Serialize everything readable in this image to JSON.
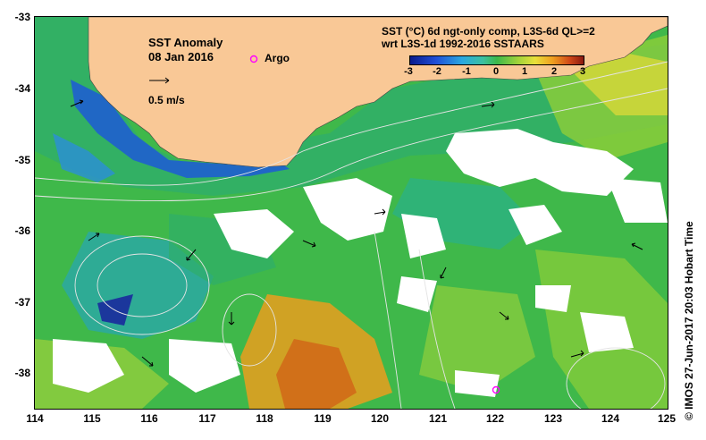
{
  "map": {
    "title": "SST Anomaly",
    "date": "08 Jan 2016",
    "argo_label": "Argo",
    "vector_scale_label": "0.5 m/s",
    "product_line1": "SST (°C) 6d ngt-only comp, L3S-6d QL>=2",
    "product_line2": "wrt L3S-1d 1992-2016 SSTAARS",
    "credit": "© IMOS 27-Jun-2017 20:03 Hobart Time",
    "colorbar_ticks": [
      "-3",
      "-2",
      "-1",
      "0",
      "1",
      "2",
      "3"
    ],
    "lat_labels": [
      "-33",
      "-34",
      "-35",
      "-36",
      "-37",
      "-38"
    ],
    "lon_labels": [
      "114",
      "115",
      "116",
      "117",
      "118",
      "119",
      "120",
      "121",
      "122",
      "123",
      "124",
      "125"
    ],
    "colors": {
      "land": "#f9c896",
      "ocean_base": "#3fb84a",
      "cloud": "#ffffff",
      "argo_marker": "#ff00ff",
      "contour": "#dddddd"
    },
    "argo_floats": [
      {
        "lon": 117.8,
        "lat": -33.6
      },
      {
        "lon": 122.0,
        "lat": -38.2
      }
    ]
  }
}
